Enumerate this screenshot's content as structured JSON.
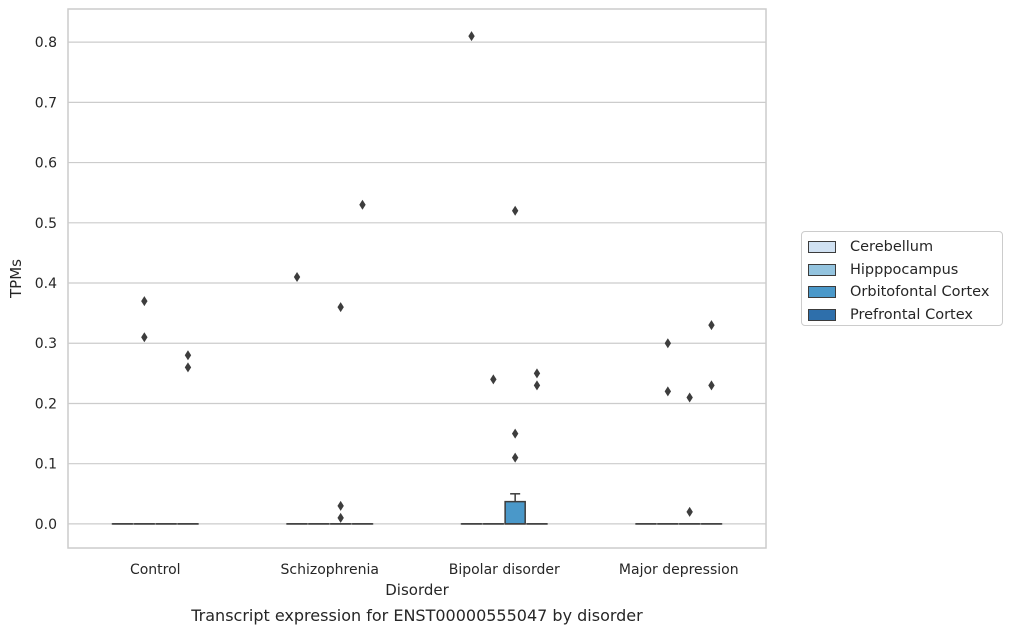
{
  "chart_data": {
    "type": "box",
    "title": "Transcript expression for ENST00000555047 by disorder",
    "xlabel": "Disorder",
    "ylabel": "TPMs",
    "ylim": [
      -0.04,
      0.855
    ],
    "yticks": [
      "0.0",
      "0.1",
      "0.2",
      "0.3",
      "0.4",
      "0.5",
      "0.6",
      "0.7",
      "0.8"
    ],
    "grid": "horizontal",
    "legend_position": "right",
    "categories": [
      "Control",
      "Schizophrenia",
      "Bipolar disorder",
      "Major depression"
    ],
    "series": [
      {
        "name": "Cerebellum",
        "color": "#d0e1f2",
        "boxes": [
          {
            "q1": 0,
            "median": 0,
            "q3": 0,
            "whisker_low": 0,
            "whisker_high": 0,
            "outliers": []
          },
          {
            "q1": 0,
            "median": 0,
            "q3": 0,
            "whisker_low": 0,
            "whisker_high": 0,
            "outliers": [
              0.41
            ]
          },
          {
            "q1": 0,
            "median": 0,
            "q3": 0,
            "whisker_low": 0,
            "whisker_high": 0,
            "outliers": [
              0.81
            ]
          },
          {
            "q1": 0,
            "median": 0,
            "q3": 0,
            "whisker_low": 0,
            "whisker_high": 0,
            "outliers": []
          }
        ]
      },
      {
        "name": "Hipppocampus",
        "color": "#94c4df",
        "boxes": [
          {
            "q1": 0,
            "median": 0,
            "q3": 0,
            "whisker_low": 0,
            "whisker_high": 0,
            "outliers": [
              0.37,
              0.31
            ]
          },
          {
            "q1": 0,
            "median": 0,
            "q3": 0,
            "whisker_low": 0,
            "whisker_high": 0,
            "outliers": []
          },
          {
            "q1": 0,
            "median": 0,
            "q3": 0,
            "whisker_low": 0,
            "whisker_high": 0,
            "outliers": [
              0.24
            ]
          },
          {
            "q1": 0,
            "median": 0,
            "q3": 0,
            "whisker_low": 0,
            "whisker_high": 0,
            "outliers": [
              0.3,
              0.22
            ]
          }
        ]
      },
      {
        "name": "Orbitofontal Cortex",
        "color": "#4a98c9",
        "boxes": [
          {
            "q1": 0,
            "median": 0,
            "q3": 0,
            "whisker_low": 0,
            "whisker_high": 0,
            "outliers": []
          },
          {
            "q1": 0,
            "median": 0,
            "q3": 0,
            "whisker_low": 0,
            "whisker_high": 0,
            "outliers": [
              0.36,
              0.03,
              0.01
            ]
          },
          {
            "q1": 0,
            "median": 0,
            "q3": 0.037,
            "whisker_low": 0,
            "whisker_high": 0.05,
            "outliers": [
              0.52,
              0.15,
              0.11
            ]
          },
          {
            "q1": 0,
            "median": 0,
            "q3": 0,
            "whisker_low": 0,
            "whisker_high": 0,
            "outliers": [
              0.21,
              0.02
            ]
          }
        ]
      },
      {
        "name": "Prefrontal Cortex",
        "color": "#2e6fab",
        "boxes": [
          {
            "q1": 0,
            "median": 0,
            "q3": 0,
            "whisker_low": 0,
            "whisker_high": 0,
            "outliers": [
              0.28,
              0.26
            ]
          },
          {
            "q1": 0,
            "median": 0,
            "q3": 0,
            "whisker_low": 0,
            "whisker_high": 0,
            "outliers": [
              0.53
            ]
          },
          {
            "q1": 0,
            "median": 0,
            "q3": 0,
            "whisker_low": 0,
            "whisker_high": 0,
            "outliers": [
              0.25,
              0.23
            ]
          },
          {
            "q1": 0,
            "median": 0,
            "q3": 0,
            "whisker_low": 0,
            "whisker_high": 0,
            "outliers": [
              0.33,
              0.23
            ]
          }
        ]
      }
    ]
  }
}
